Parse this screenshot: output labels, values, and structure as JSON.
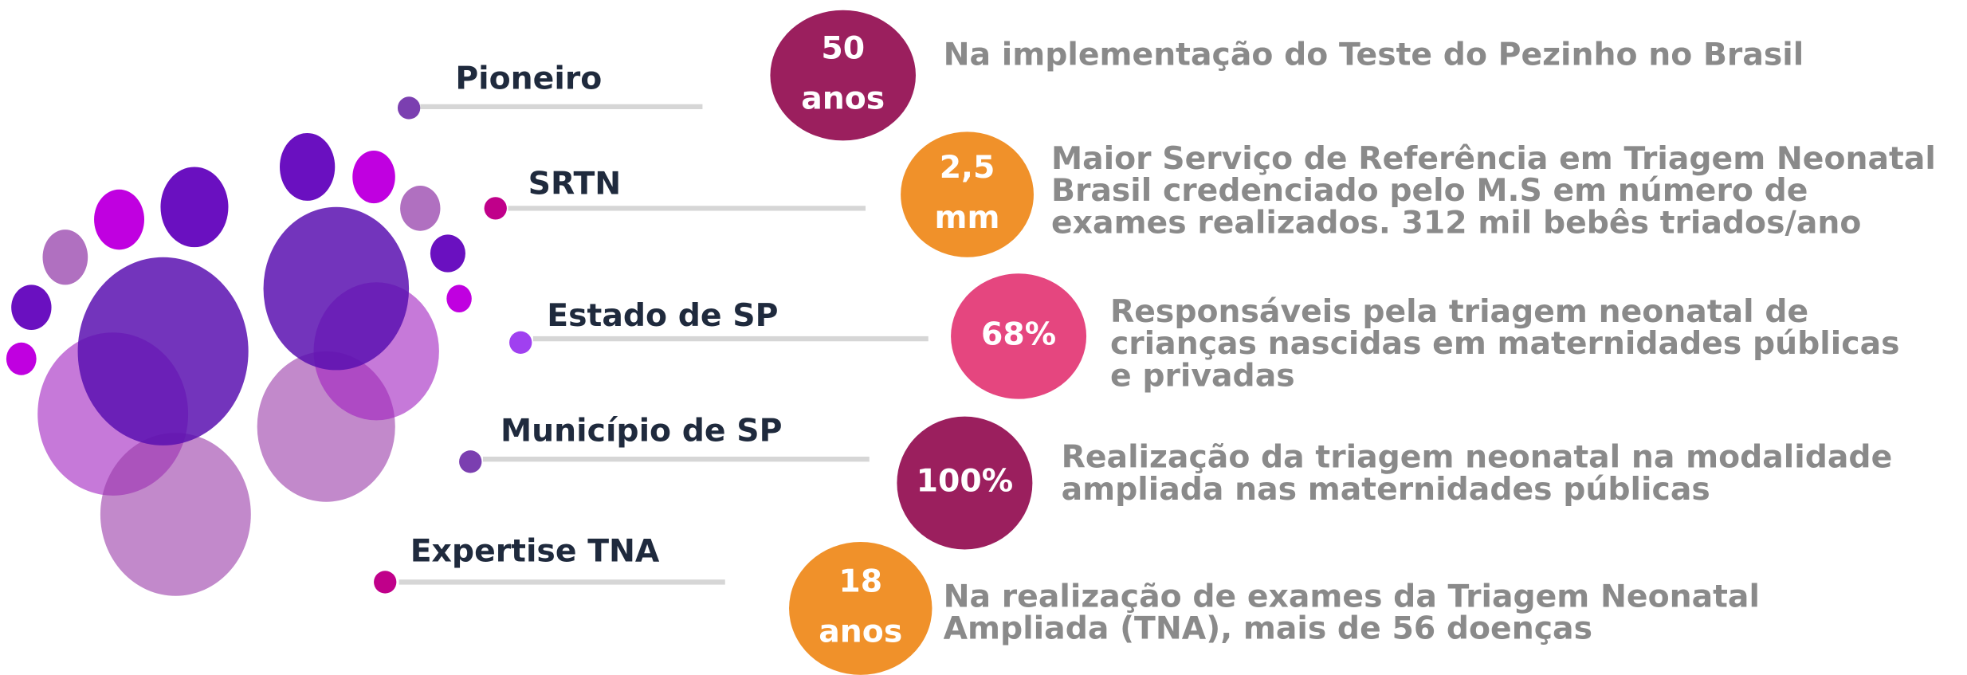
{
  "items": [
    {
      "label": "Pioneiro",
      "badge": [
        "50",
        "anos"
      ],
      "description": [
        "Na implementação do Teste do Pezinho no Brasil"
      ]
    },
    {
      "label": "SRTN",
      "badge": [
        "2,5",
        "mm"
      ],
      "description": [
        "Maior Serviço de Referência em Triagem Neonatal",
        "Brasil credenciado pelo M.S em número de",
        "exames realizados. 312 mil bebês triados/ano"
      ]
    },
    {
      "label": "Estado de SP",
      "badge": [
        "68%"
      ],
      "description": [
        "Responsáveis pela triagem neonatal de",
        "crianças nascidas em maternidades públicas",
        "e privadas"
      ]
    },
    {
      "label": "Município de SP",
      "badge": [
        "100%"
      ],
      "description": [
        "Realização da triagem neonatal na modalidade",
        "ampliada nas maternidades públicas"
      ]
    },
    {
      "label": "Expertise TNA",
      "badge": [
        "18",
        "anos"
      ],
      "description": [
        "Na realização de exames da Triagem Neonatal",
        "Ampliada (TNA), mais de 56 doenças"
      ]
    }
  ]
}
